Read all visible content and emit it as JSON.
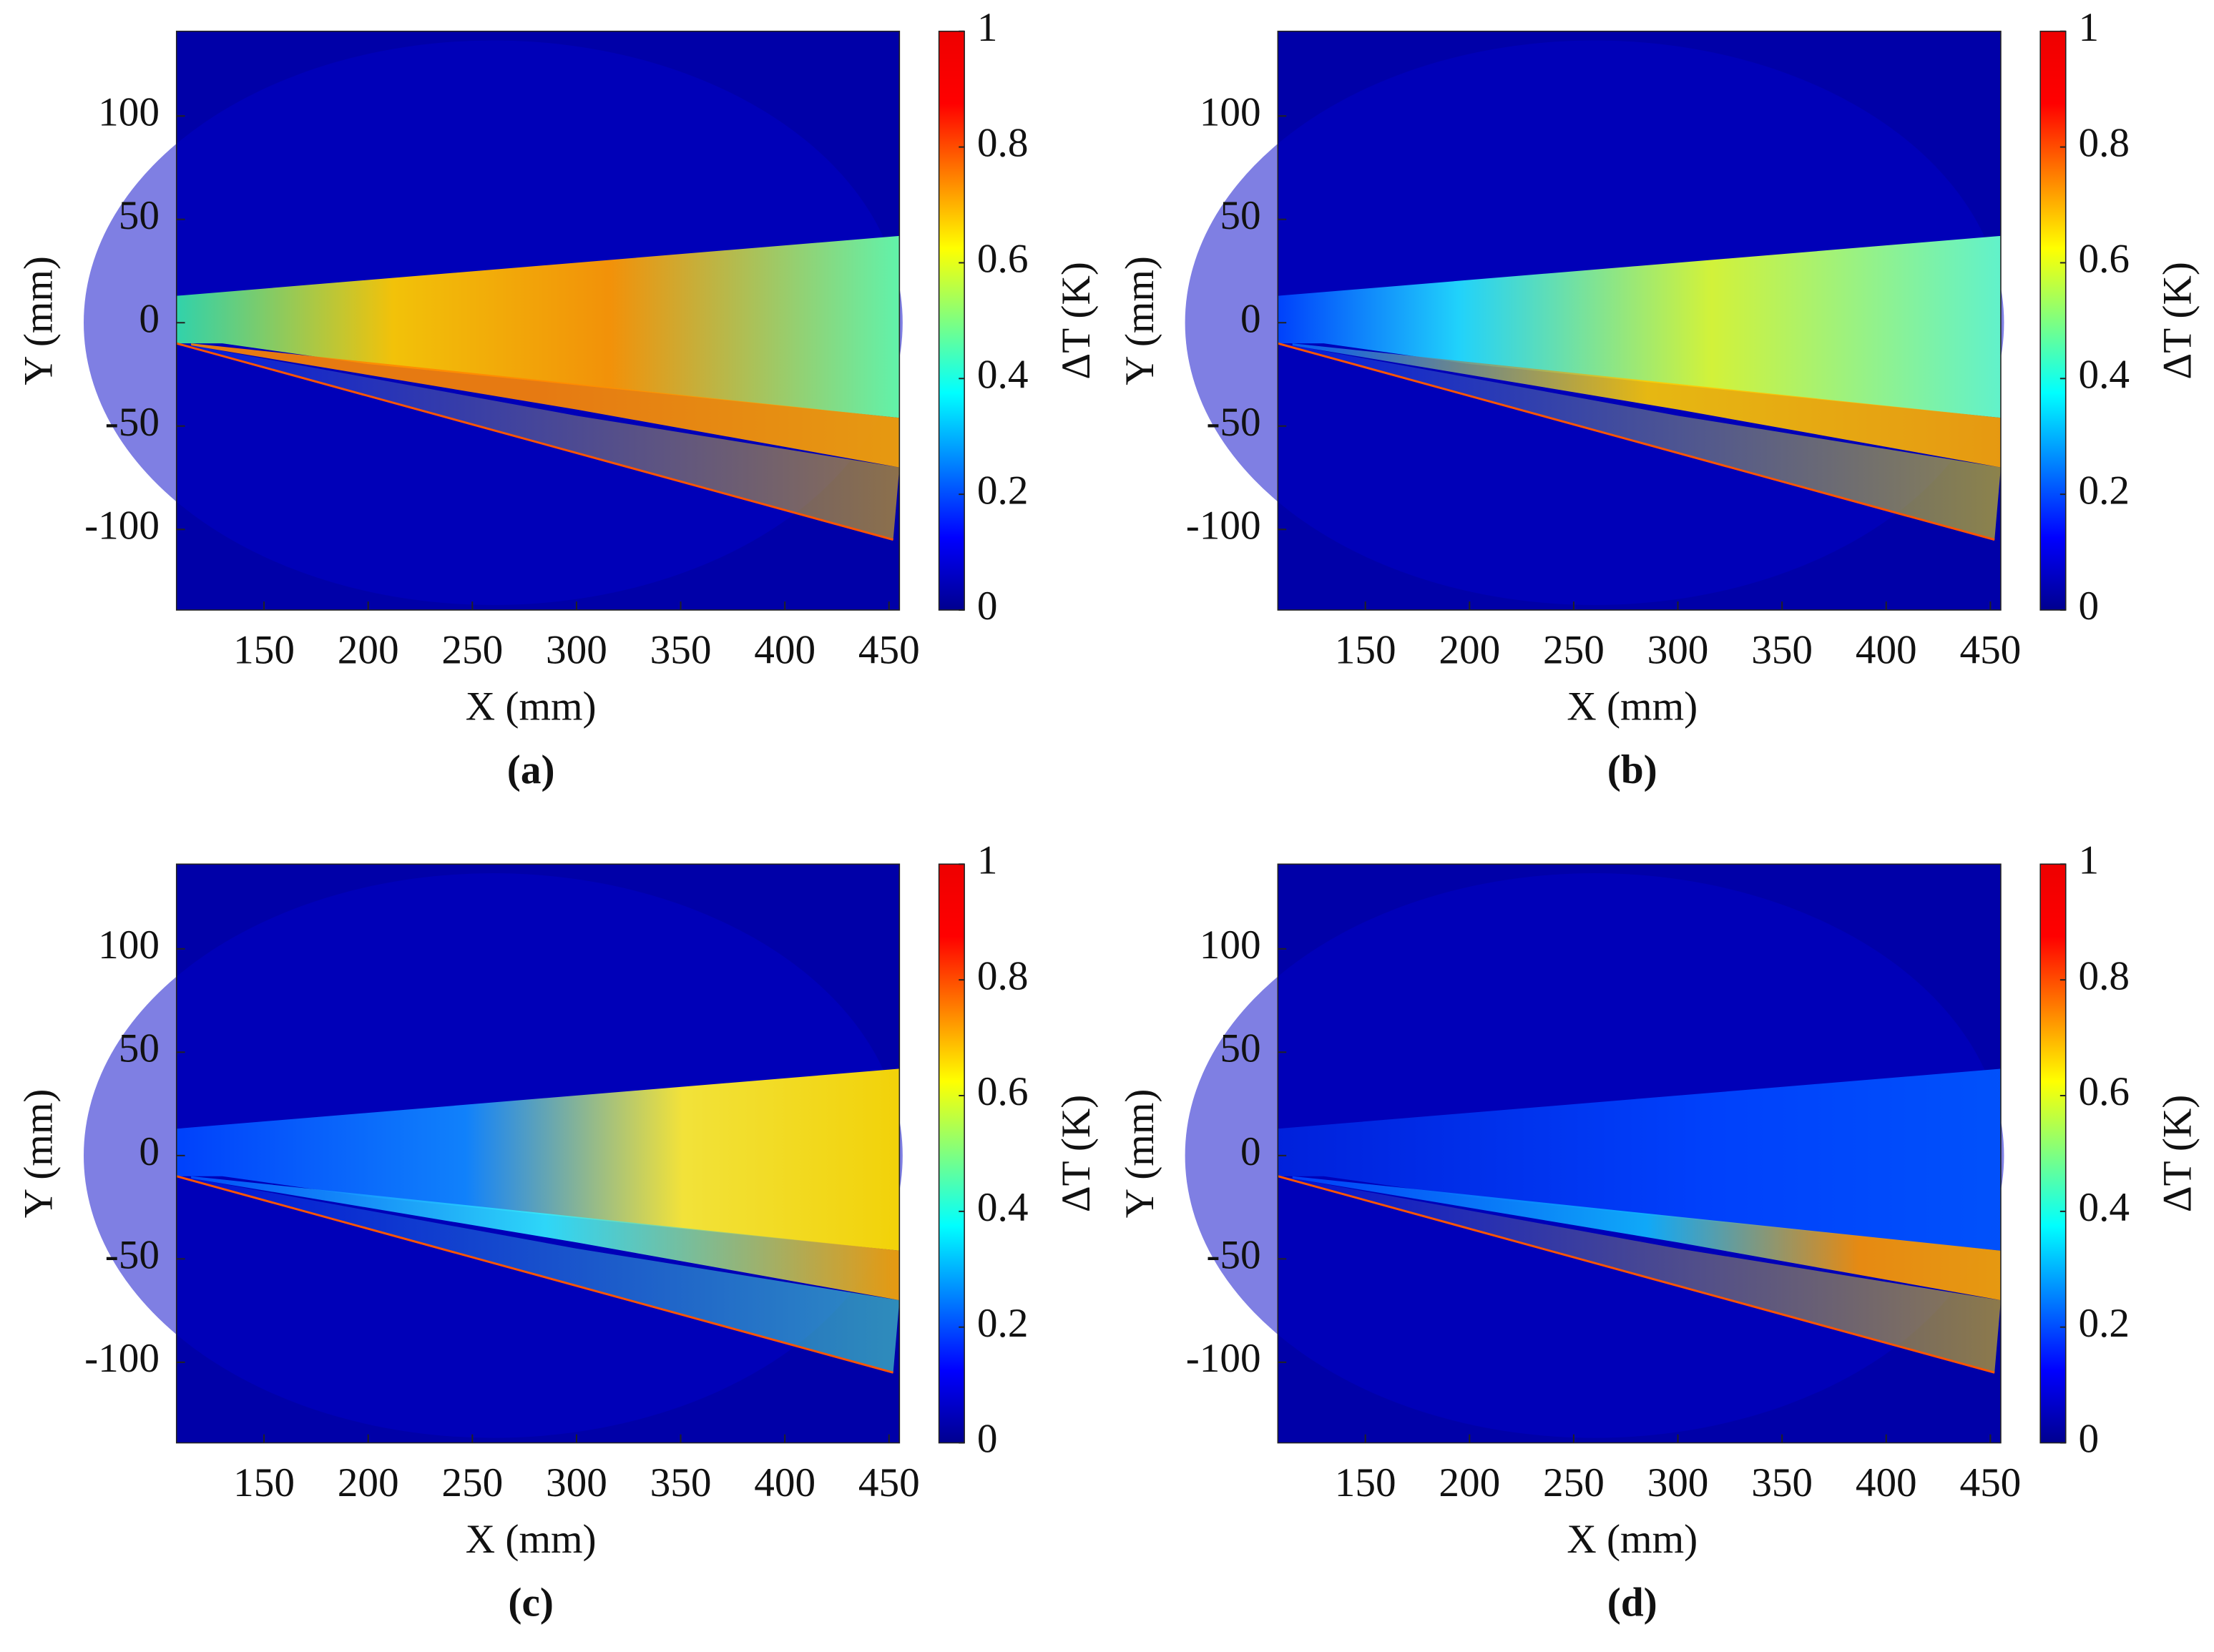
{
  "chart_data": [
    {
      "type": "heatmap",
      "title": "(a)",
      "xlabel": "X (mm)",
      "ylabel": "Y (mm)",
      "colorbar_label": "ΔT (K)",
      "colormap": "jet",
      "xlim": [
        108,
        455
      ],
      "ylim": [
        -139,
        141
      ],
      "xticks": [
        150,
        200,
        250,
        300,
        350,
        400,
        450
      ],
      "yticks": [
        -100,
        -50,
        0,
        50,
        100
      ],
      "clim": [
        0,
        1
      ],
      "cticks": [
        0,
        0.2,
        0.4,
        0.6,
        0.8,
        1
      ]
    },
    {
      "type": "heatmap",
      "title": "(b)",
      "xlabel": "X (mm)",
      "ylabel": "Y (mm)",
      "colorbar_label": "ΔT (K)",
      "colormap": "jet",
      "xlim": [
        108,
        455
      ],
      "ylim": [
        -139,
        141
      ],
      "xticks": [
        150,
        200,
        250,
        300,
        350,
        400,
        450
      ],
      "yticks": [
        -100,
        -50,
        0,
        50,
        100
      ],
      "clim": [
        0,
        1
      ],
      "cticks": [
        0,
        0.2,
        0.4,
        0.6,
        0.8,
        1
      ]
    },
    {
      "type": "heatmap",
      "title": "(c)",
      "xlabel": "X (mm)",
      "ylabel": "Y (mm)",
      "colorbar_label": "ΔT (K)",
      "colormap": "jet",
      "xlim": [
        108,
        455
      ],
      "ylim": [
        -139,
        141
      ],
      "xticks": [
        150,
        200,
        250,
        300,
        350,
        400,
        450
      ],
      "yticks": [
        -100,
        -50,
        0,
        50,
        100
      ],
      "clim": [
        0,
        1
      ],
      "cticks": [
        0,
        0.2,
        0.4,
        0.6,
        0.8,
        1
      ]
    },
    {
      "type": "heatmap",
      "title": "(d)",
      "xlabel": "X (mm)",
      "ylabel": "Y (mm)",
      "colorbar_label": "ΔT (K)",
      "colormap": "jet",
      "xlim": [
        108,
        455
      ],
      "ylim": [
        -139,
        141
      ],
      "xticks": [
        150,
        200,
        250,
        300,
        350,
        400,
        450
      ],
      "yticks": [
        -100,
        -50,
        0,
        50,
        100
      ],
      "clim": [
        0,
        1
      ],
      "cticks": [
        0,
        0.2,
        0.4,
        0.6,
        0.8,
        1
      ]
    }
  ]
}
